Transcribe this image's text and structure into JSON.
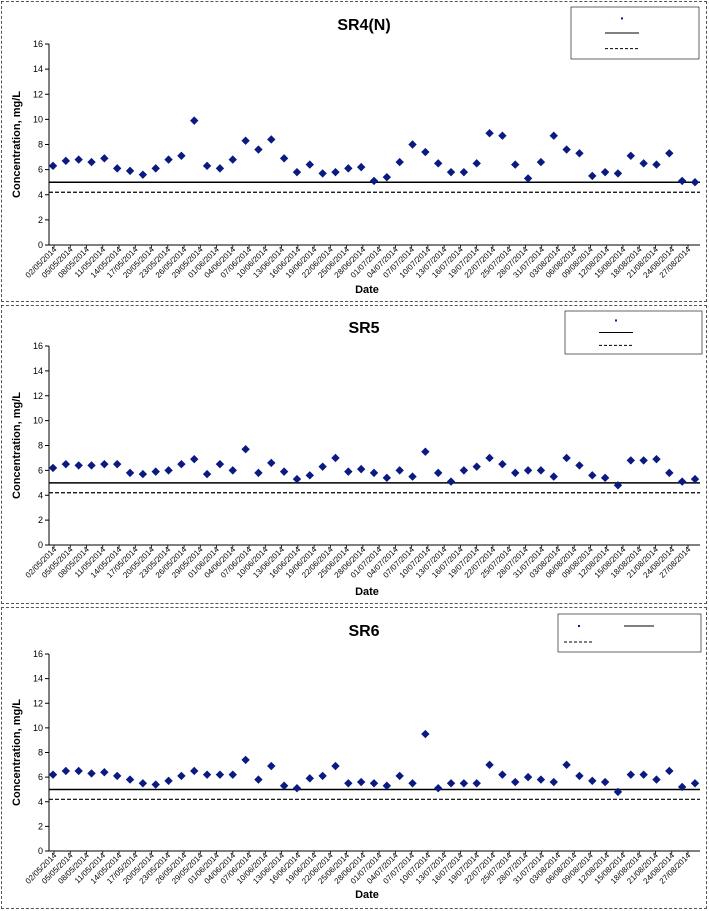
{
  "chart_data": [
    {
      "type": "scatter",
      "title": "SR4(N)",
      "xlabel": "Date",
      "ylabel": "Concentration, mg/L",
      "ylim": [
        0,
        16
      ],
      "yticks": [
        0,
        2,
        4,
        6,
        8,
        10,
        12,
        14,
        16
      ],
      "grid": false,
      "legend_position": "top-right",
      "x_tick_labels": [
        "02/05/2014",
        "05/05/2014",
        "08/05/2014",
        "11/05/2014",
        "14/05/2014",
        "17/05/2014",
        "20/05/2014",
        "23/05/2014",
        "26/05/2014",
        "29/05/2014",
        "01/06/2014",
        "04/06/2014",
        "07/06/2014",
        "10/06/2014",
        "13/06/2014",
        "16/06/2014",
        "19/06/2014",
        "22/06/2014",
        "25/06/2014",
        "28/06/2014",
        "01/07/2014",
        "04/07/2014",
        "07/07/2014",
        "10/07/2014",
        "13/07/2014",
        "16/07/2014",
        "19/07/2014",
        "22/07/2014",
        "25/07/2014",
        "28/07/2014",
        "31/07/2014",
        "03/08/2014",
        "06/08/2014",
        "09/08/2014",
        "12/08/2014",
        "15/08/2014",
        "18/08/2014",
        "21/08/2014",
        "24/08/2014",
        "27/08/2014"
      ],
      "reference_lines": [
        {
          "style": "solid",
          "value": 5.0
        },
        {
          "style": "dashed",
          "value": 4.2
        }
      ],
      "series": [
        {
          "values": [
            6.3,
            6.7,
            6.8,
            6.6,
            6.9,
            6.1,
            5.9,
            5.6,
            6.1,
            6.8,
            7.1,
            9.9,
            6.3,
            6.1,
            6.8,
            8.3,
            7.6,
            8.4,
            6.9,
            5.8,
            6.4,
            5.7,
            5.8,
            6.1,
            6.2,
            5.1,
            5.4,
            6.6,
            8.0,
            7.4,
            6.5,
            5.8,
            5.8,
            6.5,
            8.9,
            8.7,
            6.4,
            5.3,
            6.6,
            8.7,
            7.6,
            7.3,
            5.5,
            5.8,
            5.7,
            7.1,
            6.5,
            6.4,
            7.3,
            5.1,
            5.0
          ]
        }
      ]
    },
    {
      "type": "scatter",
      "title": "SR5",
      "xlabel": "Date",
      "ylabel": "Concentration, mg/L",
      "ylim": [
        0,
        16
      ],
      "yticks": [
        0,
        2,
        4,
        6,
        8,
        10,
        12,
        14,
        16
      ],
      "grid": false,
      "legend_position": "top-right",
      "x_tick_labels": [
        "02/05/2014",
        "05/05/2014",
        "08/05/2014",
        "11/05/2014",
        "14/05/2014",
        "17/05/2014",
        "20/05/2014",
        "23/05/2014",
        "26/05/2014",
        "29/05/2014",
        "01/06/2014",
        "04/06/2014",
        "07/06/2014",
        "10/06/2014",
        "13/06/2014",
        "16/06/2014",
        "19/06/2014",
        "22/06/2014",
        "25/06/2014",
        "28/06/2014",
        "01/07/2014",
        "04/07/2014",
        "07/07/2014",
        "10/07/2014",
        "13/07/2014",
        "16/07/2014",
        "19/07/2014",
        "22/07/2014",
        "25/07/2014",
        "28/07/2014",
        "31/07/2014",
        "03/08/2014",
        "06/08/2014",
        "09/08/2014",
        "12/08/2014",
        "15/08/2014",
        "18/08/2014",
        "21/08/2014",
        "24/08/2014",
        "27/08/2014"
      ],
      "reference_lines": [
        {
          "style": "solid",
          "value": 5.0
        },
        {
          "style": "dashed",
          "value": 4.2
        }
      ],
      "series": [
        {
          "values": [
            6.2,
            6.5,
            6.4,
            6.4,
            6.5,
            6.5,
            5.8,
            5.7,
            5.9,
            6.0,
            6.5,
            6.9,
            5.7,
            6.5,
            6.0,
            7.7,
            5.8,
            6.6,
            5.9,
            5.3,
            5.6,
            6.3,
            7.0,
            5.9,
            6.1,
            5.8,
            5.4,
            6.0,
            5.5,
            7.5,
            5.8,
            5.1,
            6.0,
            6.3,
            7.0,
            6.5,
            5.8,
            6.0,
            6.0,
            5.5,
            7.0,
            6.4,
            5.6,
            5.4,
            4.8,
            6.8,
            6.8,
            6.9,
            5.8,
            5.1,
            5.3
          ]
        }
      ]
    },
    {
      "type": "scatter",
      "title": "SR6",
      "xlabel": "Date",
      "ylabel": "Concentration, mg/L",
      "ylim": [
        0,
        16
      ],
      "yticks": [
        0,
        2,
        4,
        6,
        8,
        10,
        12,
        14,
        16
      ],
      "grid": false,
      "legend_position": "top-right",
      "x_tick_labels": [
        "02/05/2014",
        "05/05/2014",
        "08/05/2014",
        "11/05/2014",
        "14/05/2014",
        "17/05/2014",
        "20/05/2014",
        "23/05/2014",
        "26/05/2014",
        "29/05/2014",
        "01/06/2014",
        "04/06/2014",
        "07/06/2014",
        "10/06/2014",
        "13/06/2014",
        "16/06/2014",
        "19/06/2014",
        "22/06/2014",
        "25/06/2014",
        "28/06/2014",
        "01/07/2014",
        "04/07/2014",
        "07/07/2014",
        "10/07/2014",
        "13/07/2014",
        "16/07/2014",
        "19/07/2014",
        "22/07/2014",
        "25/07/2014",
        "28/07/2014",
        "31/07/2014",
        "03/08/2014",
        "06/08/2014",
        "09/08/2014",
        "12/08/2014",
        "15/08/2014",
        "18/08/2014",
        "21/08/2014",
        "24/08/2014",
        "27/08/2014"
      ],
      "reference_lines": [
        {
          "style": "solid",
          "value": 5.0
        },
        {
          "style": "dashed",
          "value": 4.2
        }
      ],
      "series": [
        {
          "values": [
            6.2,
            6.5,
            6.5,
            6.3,
            6.4,
            6.1,
            5.8,
            5.5,
            5.4,
            5.7,
            6.1,
            6.5,
            6.2,
            6.2,
            6.2,
            7.4,
            5.8,
            6.9,
            5.3,
            5.1,
            5.9,
            6.1,
            6.9,
            5.5,
            5.6,
            5.5,
            5.3,
            6.1,
            5.5,
            9.5,
            5.1,
            5.5,
            5.5,
            5.5,
            7.0,
            6.2,
            5.6,
            6.0,
            5.8,
            5.6,
            7.0,
            6.1,
            5.7,
            5.6,
            4.8,
            6.2,
            6.2,
            5.8,
            6.5,
            5.2,
            5.5
          ]
        }
      ]
    }
  ],
  "colors": {
    "marker": "#0a1a80",
    "axis": "#000000",
    "text": "#000000"
  }
}
